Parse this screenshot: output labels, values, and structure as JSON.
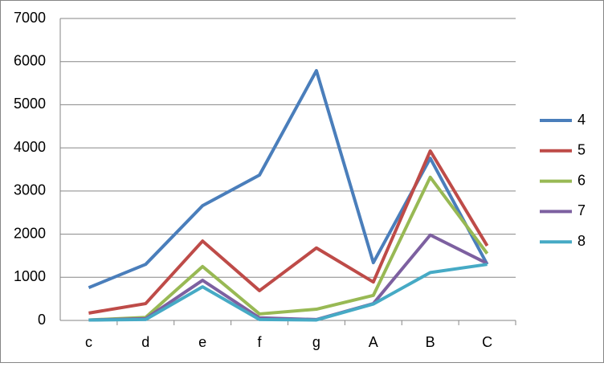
{
  "chart_data": {
    "type": "line",
    "categories": [
      "c",
      "d",
      "e",
      "f",
      "g",
      "A",
      "B",
      "C"
    ],
    "series": [
      {
        "name": "4",
        "color": "#4a7ebb",
        "values": [
          760,
          1300,
          2660,
          3370,
          5790,
          1340,
          3760,
          1300
        ]
      },
      {
        "name": "5",
        "color": "#be4b48",
        "values": [
          170,
          390,
          1840,
          690,
          1680,
          890,
          3930,
          1730
        ]
      },
      {
        "name": "6",
        "color": "#98b954",
        "values": [
          10,
          70,
          1250,
          150,
          260,
          580,
          3320,
          1550
        ]
      },
      {
        "name": "7",
        "color": "#7d60a0",
        "values": [
          10,
          40,
          930,
          60,
          20,
          390,
          1980,
          1320
        ]
      },
      {
        "name": "8",
        "color": "#46aac5",
        "values": [
          10,
          20,
          780,
          20,
          10,
          380,
          1110,
          1300
        ]
      }
    ],
    "ylim": [
      0,
      7000
    ],
    "yticks": [
      0,
      1000,
      2000,
      3000,
      4000,
      5000,
      6000,
      7000
    ],
    "grid": true,
    "legend": "right"
  }
}
